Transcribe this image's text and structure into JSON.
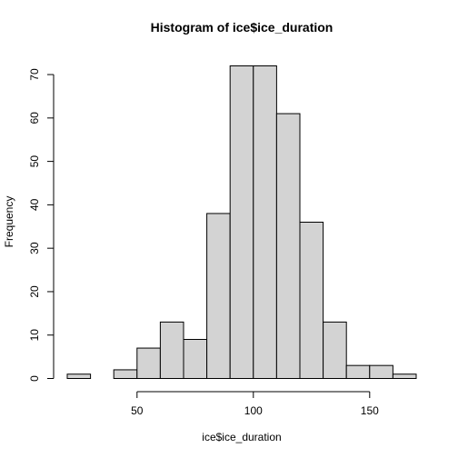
{
  "chart_data": {
    "type": "bar",
    "title": "Histogram of ice$ice_duration",
    "xlabel": "ice$ice_duration",
    "ylabel": "Frequency",
    "bin_edges": [
      20,
      30,
      40,
      50,
      60,
      70,
      80,
      90,
      100,
      110,
      120,
      130,
      140,
      150,
      160,
      170
    ],
    "values": [
      1,
      0,
      2,
      7,
      13,
      9,
      38,
      72,
      72,
      61,
      36,
      13,
      3,
      3,
      1
    ],
    "xlim": [
      20,
      170
    ],
    "ylim": [
      0,
      72
    ],
    "x_ticks": [
      50,
      100,
      150
    ],
    "y_ticks": [
      0,
      10,
      20,
      30,
      40,
      50,
      60,
      70
    ],
    "grid": false,
    "bar_color": "#d3d3d3",
    "edge_color": "#000000"
  }
}
